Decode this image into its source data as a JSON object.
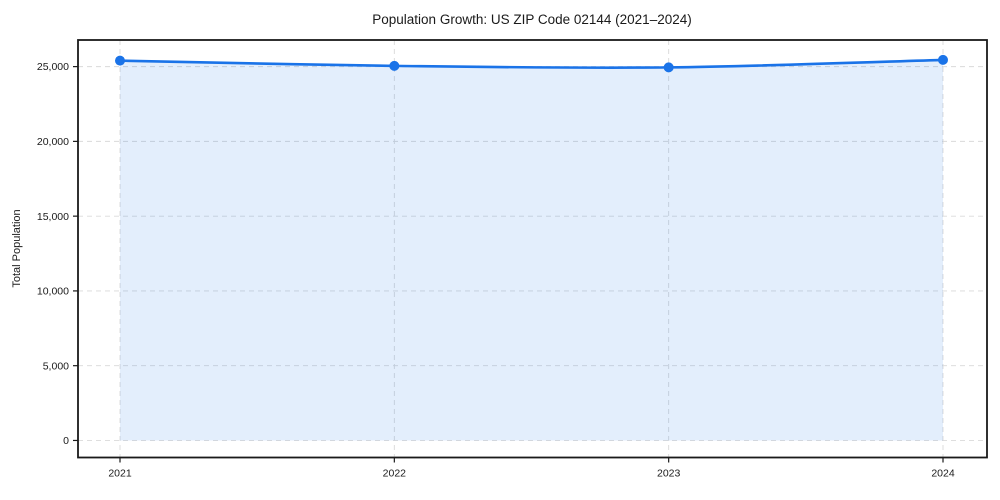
{
  "chart_data": {
    "type": "area",
    "title": "Population Growth: US ZIP Code 02144 (2021–2024)",
    "xlabel": "",
    "ylabel": "Total Population",
    "categories": [
      "2021",
      "2022",
      "2023",
      "2024"
    ],
    "series": [
      {
        "name": "Total Population",
        "values": [
          25400,
          25050,
          24950,
          25450
        ]
      }
    ],
    "yticks": {
      "values": [
        0,
        5000,
        10000,
        15000,
        20000,
        25000
      ],
      "labels": [
        "0",
        "5,000",
        "10,000",
        "15,000",
        "20,000",
        "25,000"
      ]
    },
    "ylim": [
      -1140,
      26780
    ],
    "grid": "dashed",
    "legend": "none",
    "colors": {
      "line": "#1a73e8",
      "marker": "#1a73e8",
      "fill": "rgba(26,115,232,0.12)",
      "grid": "#d9d9d9",
      "spine": "#1a1a1a",
      "text": "#1a1a1a"
    }
  }
}
